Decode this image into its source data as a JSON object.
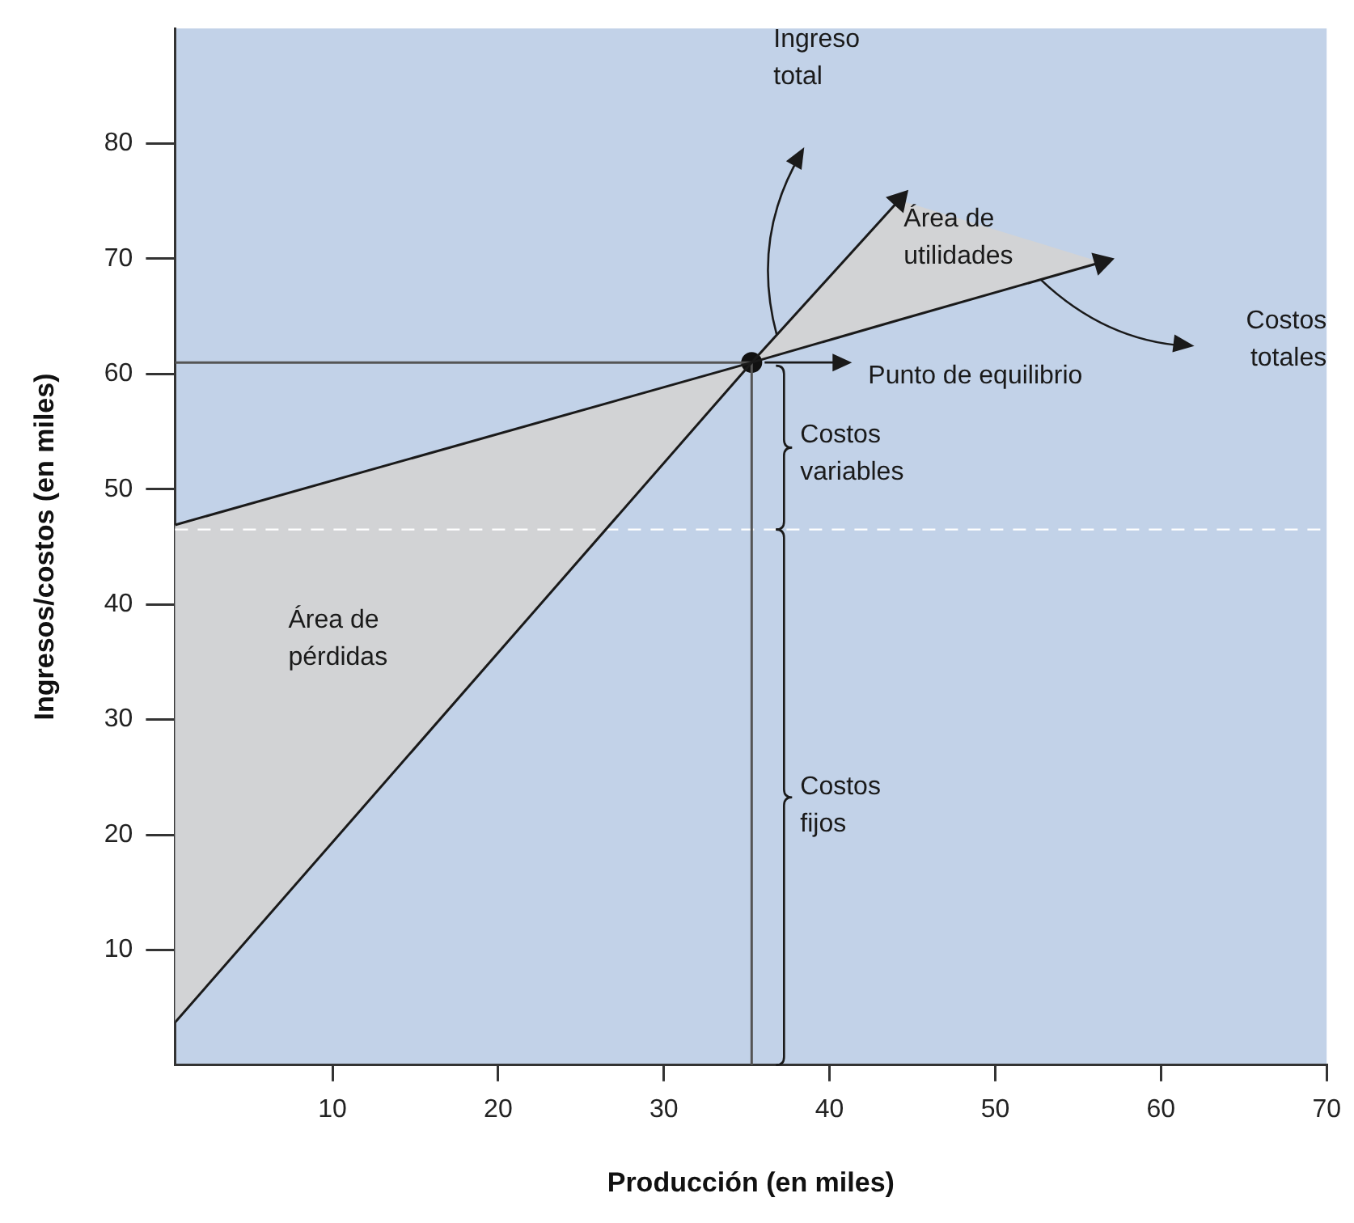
{
  "chart_data": {
    "type": "line",
    "xlabel": "Producción (en miles)",
    "ylabel": "Ingresos/costos (en miles)",
    "series": [
      {
        "color": "#1a1a1a",
        "x": [
          0.5,
          35.3,
          44.2
        ],
        "values": [
          3.7,
          61,
          75.1
        ]
      },
      {
        "color": "#1a1a1a",
        "x": [
          0.5,
          35.3,
          44.2,
          56.4
        ],
        "values": [
          46.9,
          61,
          64.7,
          69.7
        ],
        "lower": [
          3.7,
          61,
          64.7,
          69.7
        ],
        "upper": [
          46.9,
          61,
          75.1,
          69.7
        ]
      },
      {
        "color": "#555555",
        "x": [
          0.5,
          35.3
        ],
        "values": [
          61,
          61
        ]
      },
      {
        "color": "#555555",
        "x": [
          35.3,
          35.3
        ],
        "values": [
          0,
          61
        ]
      },
      {
        "type": "scatter",
        "marker": "circle",
        "color": "#111111",
        "x": [
          35.3
        ],
        "values": [
          61
        ]
      }
    ],
    "xlim": [
      0.5,
      70
    ],
    "xticks": [
      10,
      20,
      30,
      40,
      50,
      60,
      70
    ],
    "ylim": [
      0,
      90
    ],
    "yticks": [
      10,
      20,
      30,
      40,
      50,
      60,
      70,
      80
    ],
    "grid": false,
    "legend": false,
    "ref_lines": [
      {
        "axis": "y",
        "value": 46.5,
        "color": "#ffffff",
        "line_style": "dashed"
      }
    ],
    "annotations": [
      "Ingreso total",
      "Área de utilidades",
      "Costos totales",
      "Punto de equilibrio",
      "Costos variables",
      "Costos fijos",
      "Área de pérdidas"
    ]
  }
}
